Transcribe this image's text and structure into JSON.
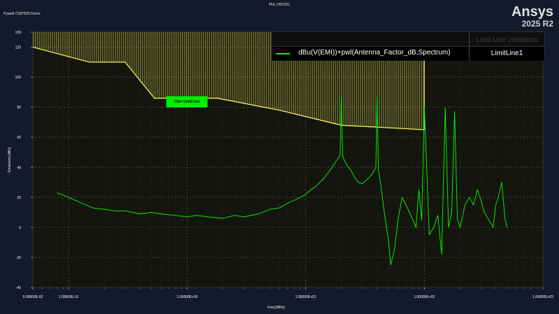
{
  "header": {
    "plot_title": "Plot_H6O3SL",
    "app_subtitle": "Pyaedt CISPR25 Demo",
    "brand_name": "Ansys",
    "brand_version": "2025 R2"
  },
  "legend": {
    "header_label": "Limit Line Violations",
    "series_label": "dBu(V(EMI))+pwl(Antenna_Factor_dB,Spectrum)",
    "limit_label": "LimitLine1"
  },
  "annotation": {
    "clip_label": "Clip= Limit Line"
  },
  "colors": {
    "background": "#141a2c",
    "plot_background": "#151510",
    "trace": "#00ff00",
    "limit": "#ffff66",
    "grid": "#c8c864"
  },
  "chart_data": {
    "type": "line",
    "xscale": "log",
    "xlabel": "Freq [MHz]",
    "ylabel": "Emissions [dBu]",
    "xlim": [
      0.05,
      1000
    ],
    "ylim": [
      -40,
      130
    ],
    "grid": true,
    "legend_position": "top-right",
    "xticks": [
      {
        "value": 0.05,
        "label": "5.00000E-02"
      },
      {
        "value": 0.1,
        "label": "1.00000E-01"
      },
      {
        "value": 1,
        "label": "1.00000E+00"
      },
      {
        "value": 10,
        "label": "1.00000E+01"
      },
      {
        "value": 100,
        "label": "1.00000E+02"
      },
      {
        "value": 1000,
        "label": "1.00000E+03"
      }
    ],
    "yticks": [
      -40,
      -20,
      0,
      20,
      40,
      60,
      80,
      100,
      120,
      130
    ],
    "limit_line": {
      "name": "LimitLine1",
      "x": [
        0.05,
        0.15,
        0.3,
        0.53,
        1.8,
        6,
        20,
        100
      ],
      "y": [
        120,
        110,
        110,
        86,
        86,
        78,
        68,
        65
      ]
    },
    "series": [
      {
        "name": "dBu(V(EMI))+pwl(Antenna_Factor_dB,Spectrum)",
        "x": [
          0.08,
          0.1,
          0.13,
          0.16,
          0.2,
          0.25,
          0.3,
          0.35,
          0.4,
          0.5,
          0.6,
          0.8,
          1.0,
          1.2,
          1.5,
          2,
          2.5,
          3,
          4,
          5,
          6,
          7,
          8,
          9,
          10,
          11,
          12,
          14,
          16,
          18,
          19.5,
          20,
          20.5,
          22,
          24,
          26,
          28,
          30,
          33,
          36,
          39,
          40,
          41,
          43,
          46,
          50,
          52,
          56,
          60,
          65,
          70,
          75,
          80,
          85,
          90,
          95,
          100,
          110,
          120,
          130,
          140,
          150,
          160,
          170,
          180,
          190,
          200,
          220,
          240,
          260,
          280,
          300,
          320,
          350,
          380,
          400,
          420,
          450,
          480,
          500
        ],
        "y": [
          23,
          20,
          16,
          13,
          12,
          11,
          11,
          10,
          9,
          10,
          9,
          8,
          7,
          8,
          7,
          6,
          8,
          7,
          9,
          12,
          13,
          16,
          18,
          20,
          22,
          25,
          27,
          32,
          38,
          44,
          48,
          87,
          47,
          42,
          38,
          33,
          30,
          29,
          32,
          35,
          40,
          87,
          38,
          28,
          10,
          -10,
          -25,
          -15,
          5,
          20,
          15,
          10,
          5,
          0,
          25,
          5,
          80,
          -5,
          0,
          8,
          -18,
          80,
          0,
          10,
          77,
          5,
          0,
          15,
          20,
          15,
          25,
          18,
          10,
          5,
          0,
          15,
          20,
          30,
          5,
          0
        ]
      }
    ]
  }
}
